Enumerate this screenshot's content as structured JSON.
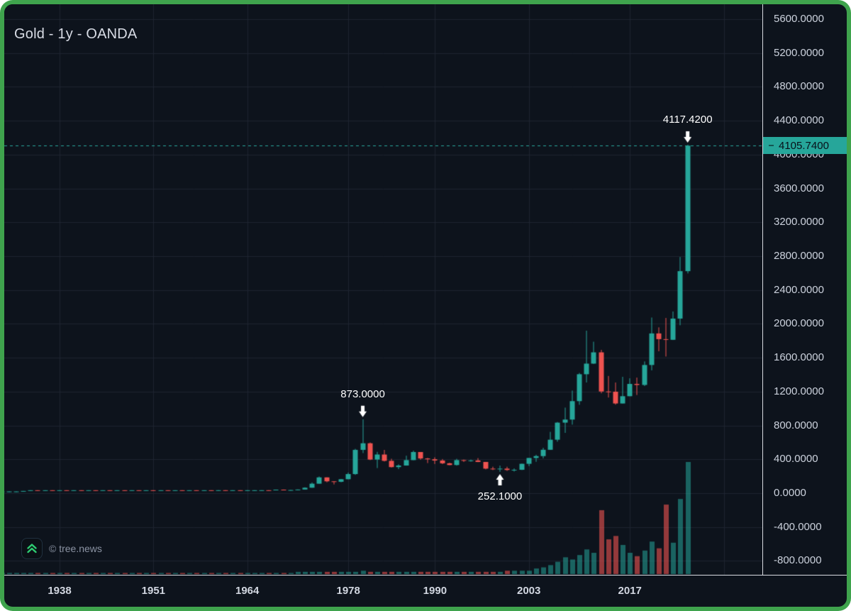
{
  "header": {
    "title": "Gold - 1y - OANDA"
  },
  "watermark": {
    "label": "© tree.news",
    "logo": "tree-news-chevrons-icon"
  },
  "price_axis": {
    "ticks": [
      "5600.0000",
      "5200.0000",
      "4800.0000",
      "4400.0000",
      "4000.0000",
      "3600.0000",
      "3200.0000",
      "2800.0000",
      "2400.0000",
      "2000.0000",
      "1600.0000",
      "1200.0000",
      "800.0000",
      "400.0000",
      "0.0000",
      "-400.0000",
      "-800.0000"
    ],
    "current_price_badge": "4105.7400",
    "badge_color": "#26a69a"
  },
  "time_axis": {
    "ticks": [
      "1938",
      "1951",
      "1964",
      "1978",
      "1990",
      "2003",
      "2017"
    ]
  },
  "colors": {
    "background": "#0d131c",
    "frame_accent": "#3fa34d",
    "up": "#26a69a",
    "down": "#ef5350",
    "grid": "#1d2430",
    "current_price_line": "#2aa79b",
    "annotation": "#ffffff"
  },
  "chart_data": {
    "type": "candlestick",
    "symbol": "Gold",
    "interval": "1y",
    "exchange": "OANDA",
    "title": "Gold - 1y - OANDA",
    "ylim": [
      -800,
      5600
    ],
    "grid": true,
    "legend_position": "none",
    "current_price": 4105.74,
    "up_color": "#26a69a",
    "down_color": "#ef5350",
    "annotations": [
      {
        "label": "4117.4200",
        "year": 2025,
        "price": 4117.42,
        "direction": "down"
      },
      {
        "label": "873.0000",
        "year": 1980,
        "price": 873.0,
        "direction": "down"
      },
      {
        "label": "252.1000",
        "year": 1999,
        "price": 252.1,
        "direction": "up"
      }
    ],
    "candles_format": [
      "year",
      "open",
      "high",
      "low",
      "close",
      "relative_volume"
    ],
    "candles": [
      [
        1930,
        20.67,
        20.67,
        20.67,
        20.67,
        1
      ],
      [
        1931,
        20.67,
        20.67,
        20.67,
        20.67,
        1
      ],
      [
        1932,
        20.67,
        20.67,
        20.67,
        20.67,
        1
      ],
      [
        1933,
        20.67,
        26.33,
        20.67,
        26.33,
        1
      ],
      [
        1934,
        26.33,
        35.0,
        26.33,
        35.0,
        1
      ],
      [
        1935,
        35.0,
        35.0,
        34.8,
        34.8,
        1
      ],
      [
        1936,
        34.8,
        35.0,
        34.8,
        35.0,
        1
      ],
      [
        1937,
        35.0,
        35.0,
        34.8,
        34.8,
        1
      ],
      [
        1938,
        34.8,
        35.0,
        34.8,
        35.0,
        1
      ],
      [
        1939,
        35.0,
        35.0,
        34.8,
        34.8,
        1
      ],
      [
        1940,
        34.8,
        35.0,
        34.8,
        35.0,
        1
      ],
      [
        1941,
        35.0,
        35.0,
        34.8,
        34.8,
        1
      ],
      [
        1942,
        34.8,
        35.0,
        34.8,
        35.0,
        1
      ],
      [
        1943,
        35.0,
        35.0,
        34.8,
        34.8,
        1
      ],
      [
        1944,
        34.8,
        35.0,
        34.8,
        35.0,
        1
      ],
      [
        1945,
        35.0,
        35.0,
        34.8,
        34.8,
        1
      ],
      [
        1946,
        34.8,
        35.0,
        34.8,
        35.0,
        1
      ],
      [
        1947,
        35.0,
        35.0,
        34.8,
        34.8,
        1
      ],
      [
        1948,
        34.8,
        35.0,
        34.8,
        35.0,
        1
      ],
      [
        1949,
        35.0,
        35.0,
        34.8,
        34.8,
        1
      ],
      [
        1950,
        34.8,
        35.0,
        34.8,
        35.0,
        1
      ],
      [
        1951,
        35.0,
        35.0,
        34.8,
        34.8,
        1
      ],
      [
        1952,
        34.8,
        35.0,
        34.8,
        35.0,
        1
      ],
      [
        1953,
        35.0,
        35.0,
        34.8,
        34.8,
        1
      ],
      [
        1954,
        34.8,
        35.0,
        34.8,
        35.0,
        1
      ],
      [
        1955,
        35.0,
        35.0,
        34.8,
        34.8,
        1
      ],
      [
        1956,
        34.8,
        35.0,
        34.8,
        35.0,
        1
      ],
      [
        1957,
        35.0,
        35.0,
        34.8,
        34.8,
        1
      ],
      [
        1958,
        34.8,
        35.0,
        34.8,
        35.0,
        1
      ],
      [
        1959,
        35.0,
        35.0,
        34.8,
        34.8,
        1
      ],
      [
        1960,
        34.8,
        35.5,
        34.8,
        35.3,
        1
      ],
      [
        1961,
        35.3,
        35.3,
        35.0,
        35.0,
        1
      ],
      [
        1962,
        35.0,
        35.2,
        34.9,
        35.1,
        1
      ],
      [
        1963,
        35.1,
        35.1,
        34.9,
        34.9,
        1
      ],
      [
        1964,
        34.9,
        35.1,
        34.9,
        35.1,
        1
      ],
      [
        1965,
        35.1,
        35.2,
        34.9,
        35.15,
        1
      ],
      [
        1966,
        35.15,
        35.2,
        34.9,
        35.2,
        1
      ],
      [
        1967,
        35.2,
        35.2,
        34.9,
        35.19,
        1
      ],
      [
        1968,
        35.19,
        42.6,
        35.0,
        41.9,
        1
      ],
      [
        1969,
        41.9,
        43.5,
        35.0,
        35.2,
        1
      ],
      [
        1970,
        35.2,
        39.2,
        34.8,
        37.4,
        1
      ],
      [
        1971,
        37.4,
        43.9,
        37.3,
        43.6,
        2
      ],
      [
        1972,
        43.6,
        70.0,
        43.6,
        64.9,
        2
      ],
      [
        1973,
        64.9,
        127.0,
        63.9,
        112.3,
        2
      ],
      [
        1974,
        112.3,
        197.5,
        112.3,
        186.8,
        2
      ],
      [
        1975,
        186.8,
        186.8,
        128.8,
        140.3,
        2
      ],
      [
        1976,
        140.3,
        140.3,
        103.5,
        134.8,
        2
      ],
      [
        1977,
        134.8,
        168.2,
        129.4,
        165.0,
        2
      ],
      [
        1978,
        165.0,
        243.7,
        165.0,
        226.0,
        2
      ],
      [
        1979,
        226.0,
        524.0,
        216.6,
        512.0,
        2
      ],
      [
        1980,
        512.0,
        873.0,
        474.0,
        589.8,
        3
      ],
      [
        1981,
        589.8,
        599.3,
        391.2,
        397.5,
        2
      ],
      [
        1982,
        397.5,
        488.5,
        296.8,
        456.9,
        2
      ],
      [
        1983,
        456.9,
        511.5,
        374.8,
        382.4,
        2
      ],
      [
        1984,
        382.4,
        406.9,
        303.3,
        308.3,
        2
      ],
      [
        1985,
        308.3,
        340.9,
        284.3,
        327.0,
        2
      ],
      [
        1986,
        327.0,
        442.8,
        326.0,
        390.9,
        2
      ],
      [
        1987,
        390.9,
        502.8,
        390.0,
        486.5,
        2
      ],
      [
        1988,
        486.5,
        486.5,
        395.0,
        410.3,
        2
      ],
      [
        1989,
        410.3,
        417.0,
        355.8,
        401.0,
        2
      ],
      [
        1990,
        401.0,
        424.0,
        345.0,
        386.2,
        2
      ],
      [
        1991,
        386.2,
        403.7,
        343.5,
        353.2,
        2
      ],
      [
        1992,
        353.2,
        359.6,
        330.2,
        333.0,
        2
      ],
      [
        1993,
        333.0,
        406.7,
        326.1,
        390.7,
        2
      ],
      [
        1994,
        390.7,
        397.5,
        369.7,
        383.3,
        2
      ],
      [
        1995,
        383.3,
        396.9,
        372.4,
        387.0,
        2
      ],
      [
        1996,
        387.0,
        414.8,
        367.4,
        369.3,
        2
      ],
      [
        1997,
        369.3,
        369.3,
        281.0,
        290.2,
        2
      ],
      [
        1998,
        290.2,
        313.1,
        273.4,
        287.8,
        2
      ],
      [
        1999,
        287.8,
        326.2,
        252.1,
        290.2,
        2
      ],
      [
        2000,
        290.2,
        312.7,
        263.8,
        274.4,
        3
      ],
      [
        2001,
        274.4,
        293.2,
        255.9,
        276.5,
        3
      ],
      [
        2002,
        276.5,
        349.3,
        273.7,
        347.2,
        3
      ],
      [
        2003,
        347.2,
        416.2,
        319.9,
        416.2,
        3
      ],
      [
        2004,
        416.2,
        454.2,
        371.0,
        438.4,
        5
      ],
      [
        2005,
        438.4,
        536.5,
        411.1,
        513.0,
        6
      ],
      [
        2006,
        513.0,
        725.0,
        513.0,
        632.0,
        8
      ],
      [
        2007,
        632.0,
        841.1,
        608.4,
        833.7,
        11
      ],
      [
        2008,
        833.7,
        1011.2,
        712.5,
        869.7,
        15
      ],
      [
        2009,
        869.7,
        1212.5,
        810.0,
        1087.5,
        13
      ],
      [
        2010,
        1087.5,
        1421.0,
        1044.5,
        1405.5,
        17
      ],
      [
        2011,
        1405.5,
        1920.3,
        1308.2,
        1531.0,
        22
      ],
      [
        2012,
        1531.0,
        1790.0,
        1527.0,
        1664.0,
        19
      ],
      [
        2013,
        1664.0,
        1693.7,
        1180.5,
        1201.5,
        57
      ],
      [
        2014,
        1201.5,
        1385.0,
        1130.4,
        1199.2,
        31
      ],
      [
        2015,
        1199.2,
        1307.8,
        1046.2,
        1060.0,
        34
      ],
      [
        2016,
        1060.0,
        1375.0,
        1060.0,
        1145.9,
        26
      ],
      [
        2017,
        1145.9,
        1357.6,
        1145.9,
        1291.0,
        19
      ],
      [
        2018,
        1291.0,
        1366.0,
        1160.4,
        1279.0,
        16
      ],
      [
        2019,
        1279.0,
        1557.0,
        1266.0,
        1514.7,
        21
      ],
      [
        2020,
        1514.7,
        2075.4,
        1451.5,
        1887.6,
        29
      ],
      [
        2021,
        1887.6,
        1959.3,
        1676.9,
        1820.1,
        23
      ],
      [
        2022,
        1820.1,
        2070.4,
        1614.6,
        1812.3,
        62
      ],
      [
        2023,
        1812.3,
        2146.7,
        1810.0,
        2062.9,
        28
      ],
      [
        2024,
        2062.9,
        2790.1,
        1984.1,
        2623.3,
        67
      ],
      [
        2025,
        2623.3,
        4117.42,
        2596.2,
        4105.74,
        100
      ]
    ]
  }
}
